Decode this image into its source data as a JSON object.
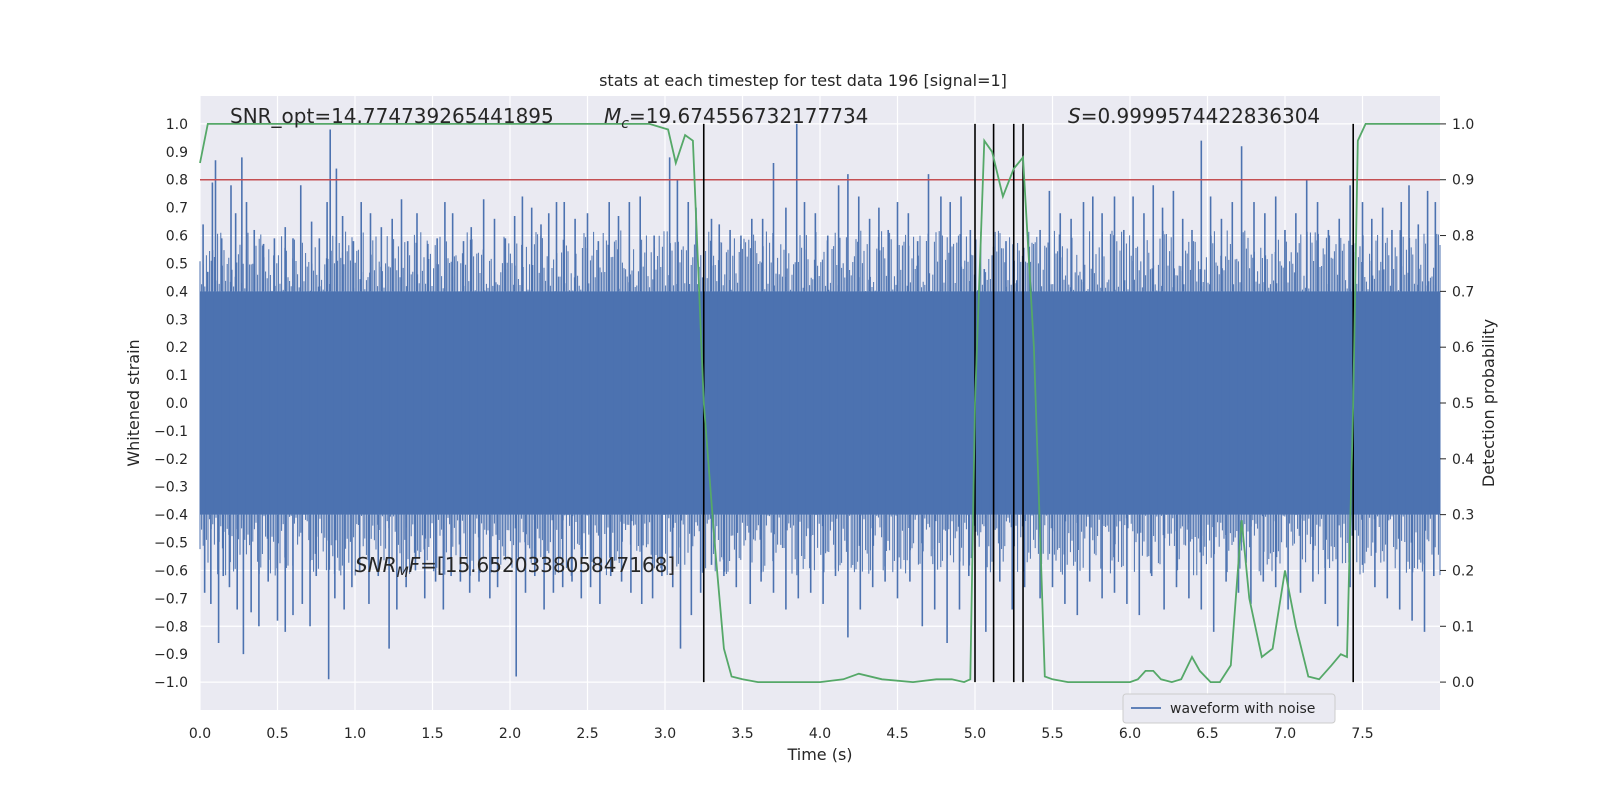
{
  "chart_data": {
    "type": "line",
    "title": "stats at each timestep for test data 196 [signal=1]",
    "xlabel": "Time (s)",
    "ylabel": "Whitened strain",
    "ylabel_right": "Detection probability",
    "xlim": [
      0.0,
      8.0
    ],
    "ylim": [
      -1.1,
      1.1
    ],
    "ylim_right": [
      -0.05,
      1.05
    ],
    "x_ticks": [
      "0.0",
      "0.5",
      "1.0",
      "1.5",
      "2.0",
      "2.5",
      "3.0",
      "3.5",
      "4.0",
      "4.5",
      "5.0",
      "5.5",
      "6.0",
      "6.5",
      "7.0",
      "7.5"
    ],
    "y_ticks": [
      "1.0",
      "0.9",
      "0.8",
      "0.7",
      "0.6",
      "0.5",
      "0.4",
      "0.3",
      "0.2",
      "0.1",
      "0.0",
      "-0.1",
      "-0.2",
      "-0.3",
      "-0.4",
      "-0.5",
      "-0.6",
      "-0.7",
      "-0.8",
      "-0.9",
      "-1.0"
    ],
    "y_ticks_right": [
      "1.0",
      "0.9",
      "0.8",
      "0.7",
      "0.6",
      "0.5",
      "0.4",
      "0.3",
      "0.2",
      "0.1",
      "0.0"
    ],
    "grid": true,
    "legend": {
      "placement": "lower-right",
      "entries": [
        "waveform with noise"
      ]
    },
    "annotations": {
      "snr_opt": "SNR_opt=14.774739265441895",
      "mc_prefix": "M",
      "mc_sub": "c",
      "mc_value": "=19.674556732177734",
      "s_prefix": "S",
      "s_value": "=0.9999574422836304",
      "snrmf_prefix": "SNR",
      "snrmf_sub": "M",
      "snrmf_f": "F",
      "snrmf_value": "=[15.652033805847168]"
    },
    "threshold": 0.9,
    "detection_times": [
      3.25,
      5.0,
      5.12,
      5.25,
      5.31,
      7.44
    ],
    "series": [
      {
        "name": "waveform with noise",
        "color": "#4c72b0",
        "envelope_upper": 0.4,
        "envelope_lower": -0.4,
        "peaks": [
          [
            0.02,
            0.64
          ],
          [
            0.05,
            0.47
          ],
          [
            0.08,
            0.79
          ],
          [
            0.1,
            0.87
          ],
          [
            0.14,
            0.59
          ],
          [
            0.2,
            0.78
          ],
          [
            0.23,
            0.68
          ],
          [
            0.27,
            0.88
          ],
          [
            0.3,
            0.72
          ],
          [
            0.35,
            0.62
          ],
          [
            0.41,
            0.57
          ],
          [
            0.48,
            0.59
          ],
          [
            0.55,
            0.63
          ],
          [
            0.6,
            0.59
          ],
          [
            0.65,
            0.78
          ],
          [
            0.72,
            0.65
          ],
          [
            0.77,
            0.59
          ],
          [
            0.82,
            0.72
          ],
          [
            0.84,
            0.98
          ],
          [
            0.88,
            0.84
          ],
          [
            0.92,
            0.67
          ],
          [
            0.99,
            0.58
          ],
          [
            1.04,
            0.72
          ],
          [
            1.1,
            0.68
          ],
          [
            1.17,
            0.63
          ],
          [
            1.24,
            0.66
          ],
          [
            1.3,
            0.73
          ],
          [
            1.34,
            0.58
          ],
          [
            1.4,
            0.68
          ],
          [
            1.47,
            0.57
          ],
          [
            1.53,
            0.59
          ],
          [
            1.58,
            0.72
          ],
          [
            1.63,
            0.68
          ],
          [
            1.7,
            0.58
          ],
          [
            1.75,
            0.63
          ],
          [
            1.83,
            0.73
          ],
          [
            1.9,
            0.66
          ],
          [
            1.97,
            0.59
          ],
          [
            2.03,
            0.67
          ],
          [
            2.08,
            0.74
          ],
          [
            2.14,
            0.7
          ],
          [
            2.2,
            0.64
          ],
          [
            2.25,
            0.68
          ],
          [
            2.3,
            0.72
          ],
          [
            2.35,
            0.72
          ],
          [
            2.42,
            0.66
          ],
          [
            2.5,
            0.68
          ],
          [
            2.57,
            0.58
          ],
          [
            2.64,
            0.72
          ],
          [
            2.7,
            0.67
          ],
          [
            2.77,
            0.72
          ],
          [
            2.84,
            0.74
          ],
          [
            2.93,
            0.6
          ],
          [
            3.03,
            0.88
          ],
          [
            3.08,
            0.8
          ],
          [
            3.15,
            0.72
          ],
          [
            3.2,
            0.7
          ],
          [
            3.3,
            0.66
          ],
          [
            3.35,
            0.64
          ],
          [
            3.42,
            0.62
          ],
          [
            3.49,
            0.6
          ],
          [
            3.56,
            0.66
          ],
          [
            3.63,
            0.66
          ],
          [
            3.7,
            0.86
          ],
          [
            3.78,
            0.7
          ],
          [
            3.85,
            1.0
          ],
          [
            3.9,
            0.72
          ],
          [
            3.97,
            0.68
          ],
          [
            4.05,
            0.6
          ],
          [
            4.12,
            0.78
          ],
          [
            4.18,
            0.82
          ],
          [
            4.25,
            0.74
          ],
          [
            4.32,
            0.66
          ],
          [
            4.38,
            0.7
          ],
          [
            4.44,
            0.62
          ],
          [
            4.5,
            0.72
          ],
          [
            4.57,
            0.68
          ],
          [
            4.63,
            0.58
          ],
          [
            4.7,
            0.82
          ],
          [
            4.78,
            0.74
          ],
          [
            4.84,
            0.72
          ],
          [
            4.91,
            0.74
          ],
          [
            4.97,
            0.62
          ],
          [
            5.06,
            0.48
          ],
          [
            5.12,
            0.56
          ],
          [
            5.2,
            0.58
          ],
          [
            5.27,
            0.44
          ],
          [
            5.35,
            0.56
          ],
          [
            5.42,
            0.62
          ],
          [
            5.48,
            0.76
          ],
          [
            5.55,
            0.68
          ],
          [
            5.62,
            0.66
          ],
          [
            5.7,
            0.72
          ],
          [
            5.76,
            0.74
          ],
          [
            5.82,
            0.68
          ],
          [
            5.9,
            0.74
          ],
          [
            5.96,
            0.62
          ],
          [
            6.02,
            0.74
          ],
          [
            6.09,
            0.68
          ],
          [
            6.15,
            0.78
          ],
          [
            6.21,
            0.7
          ],
          [
            6.28,
            0.76
          ],
          [
            6.34,
            0.66
          ],
          [
            6.4,
            0.62
          ],
          [
            6.46,
            0.94
          ],
          [
            6.52,
            0.74
          ],
          [
            6.59,
            0.66
          ],
          [
            6.66,
            0.72
          ],
          [
            6.72,
            0.92
          ],
          [
            6.8,
            0.72
          ],
          [
            6.87,
            0.68
          ],
          [
            6.94,
            0.74
          ],
          [
            7.0,
            0.62
          ],
          [
            7.07,
            0.68
          ],
          [
            7.14,
            0.8
          ],
          [
            7.21,
            0.72
          ],
          [
            7.28,
            0.62
          ],
          [
            7.35,
            0.66
          ],
          [
            7.42,
            0.78
          ],
          [
            7.5,
            0.72
          ],
          [
            7.56,
            0.66
          ],
          [
            7.63,
            0.7
          ],
          [
            7.69,
            0.62
          ],
          [
            7.75,
            0.72
          ],
          [
            7.8,
            0.78
          ],
          [
            7.86,
            0.64
          ],
          [
            7.92,
            0.76
          ],
          [
            7.97,
            0.72
          ],
          [
            0.03,
            -0.68
          ],
          [
            0.07,
            -0.72
          ],
          [
            0.12,
            -0.86
          ],
          [
            0.15,
            -0.62
          ],
          [
            0.19,
            -0.66
          ],
          [
            0.24,
            -0.74
          ],
          [
            0.28,
            -0.9
          ],
          [
            0.33,
            -0.75
          ],
          [
            0.38,
            -0.8
          ],
          [
            0.44,
            -0.64
          ],
          [
            0.5,
            -0.78
          ],
          [
            0.55,
            -0.82
          ],
          [
            0.6,
            -0.76
          ],
          [
            0.66,
            -0.72
          ],
          [
            0.71,
            -0.8
          ],
          [
            0.75,
            -0.62
          ],
          [
            0.83,
            -0.99
          ],
          [
            0.87,
            -0.7
          ],
          [
            0.93,
            -0.74
          ],
          [
            0.98,
            -0.66
          ],
          [
            1.03,
            -0.6
          ],
          [
            1.09,
            -0.72
          ],
          [
            1.15,
            -0.62
          ],
          [
            1.22,
            -0.88
          ],
          [
            1.27,
            -0.74
          ],
          [
            1.33,
            -0.66
          ],
          [
            1.39,
            -0.6
          ],
          [
            1.45,
            -0.7
          ],
          [
            1.52,
            -0.64
          ],
          [
            1.57,
            -0.74
          ],
          [
            1.62,
            -0.62
          ],
          [
            1.68,
            -0.64
          ],
          [
            1.74,
            -0.68
          ],
          [
            1.8,
            -0.64
          ],
          [
            1.87,
            -0.7
          ],
          [
            1.92,
            -0.66
          ],
          [
            2.04,
            -0.98
          ],
          [
            2.1,
            -0.68
          ],
          [
            2.16,
            -0.62
          ],
          [
            2.22,
            -0.74
          ],
          [
            2.28,
            -0.68
          ],
          [
            2.34,
            -0.66
          ],
          [
            2.4,
            -0.64
          ],
          [
            2.46,
            -0.7
          ],
          [
            2.52,
            -0.66
          ],
          [
            2.58,
            -0.72
          ],
          [
            2.65,
            -0.62
          ],
          [
            2.72,
            -0.64
          ],
          [
            2.78,
            -0.68
          ],
          [
            2.85,
            -0.72
          ],
          [
            2.92,
            -0.7
          ],
          [
            2.98,
            -0.62
          ],
          [
            3.05,
            -0.66
          ],
          [
            3.1,
            -0.88
          ],
          [
            3.17,
            -0.76
          ],
          [
            3.23,
            -0.68
          ],
          [
            3.3,
            -0.58
          ],
          [
            3.38,
            -0.62
          ],
          [
            3.46,
            -0.66
          ],
          [
            3.55,
            -0.72
          ],
          [
            3.62,
            -0.64
          ],
          [
            3.7,
            -0.68
          ],
          [
            3.78,
            -0.74
          ],
          [
            3.86,
            -0.7
          ],
          [
            3.94,
            -0.68
          ],
          [
            4.02,
            -0.72
          ],
          [
            4.1,
            -0.62
          ],
          [
            4.18,
            -0.84
          ],
          [
            4.26,
            -0.74
          ],
          [
            4.34,
            -0.66
          ],
          [
            4.42,
            -0.64
          ],
          [
            4.5,
            -0.7
          ],
          [
            4.58,
            -0.64
          ],
          [
            4.66,
            -0.8
          ],
          [
            4.74,
            -0.74
          ],
          [
            4.82,
            -0.86
          ],
          [
            4.9,
            -0.74
          ],
          [
            4.96,
            -0.62
          ],
          [
            5.07,
            -0.82
          ],
          [
            5.16,
            -0.64
          ],
          [
            5.24,
            -0.74
          ],
          [
            5.32,
            -0.66
          ],
          [
            5.42,
            -0.7
          ],
          [
            5.5,
            -0.66
          ],
          [
            5.58,
            -0.72
          ],
          [
            5.66,
            -0.76
          ],
          [
            5.74,
            -0.64
          ],
          [
            5.82,
            -0.7
          ],
          [
            5.9,
            -0.68
          ],
          [
            5.98,
            -0.72
          ],
          [
            6.06,
            -0.76
          ],
          [
            6.14,
            -0.62
          ],
          [
            6.22,
            -0.74
          ],
          [
            6.3,
            -0.66
          ],
          [
            6.38,
            -0.7
          ],
          [
            6.46,
            -0.74
          ],
          [
            6.54,
            -0.82
          ],
          [
            6.62,
            -0.64
          ],
          [
            6.7,
            -0.68
          ],
          [
            6.78,
            -0.72
          ],
          [
            6.86,
            -0.64
          ],
          [
            6.94,
            -0.66
          ],
          [
            7.02,
            -0.74
          ],
          [
            7.1,
            -0.68
          ],
          [
            7.18,
            -0.64
          ],
          [
            7.26,
            -0.72
          ],
          [
            7.34,
            -0.8
          ],
          [
            7.42,
            -0.66
          ],
          [
            7.5,
            -0.58
          ],
          [
            7.58,
            -0.66
          ],
          [
            7.66,
            -0.7
          ],
          [
            7.74,
            -0.74
          ],
          [
            7.82,
            -0.78
          ],
          [
            7.9,
            -0.82
          ],
          [
            7.96,
            -0.62
          ]
        ]
      },
      {
        "name": "detection probability",
        "color": "#55a868",
        "axis": "right",
        "x": [
          0.0,
          0.05,
          0.5,
          1.0,
          1.5,
          2.0,
          2.5,
          2.9,
          3.02,
          3.07,
          3.13,
          3.18,
          3.25,
          3.32,
          3.38,
          3.43,
          3.5,
          3.6,
          3.8,
          4.0,
          4.15,
          4.25,
          4.4,
          4.6,
          4.75,
          4.85,
          4.93,
          4.97,
          5.0,
          5.06,
          5.11,
          5.18,
          5.25,
          5.31,
          5.38,
          5.45,
          5.5,
          5.6,
          6.0,
          6.05,
          6.1,
          6.15,
          6.2,
          6.27,
          6.33,
          6.4,
          6.45,
          6.52,
          6.58,
          6.65,
          6.72,
          6.77,
          6.85,
          6.92,
          7.0,
          7.07,
          7.15,
          7.22,
          7.3,
          7.36,
          7.4,
          7.44,
          7.47,
          7.52,
          7.6,
          8.0
        ],
        "values": [
          0.93,
          1.0,
          1.0,
          1.0,
          1.0,
          1.0,
          1.0,
          1.0,
          0.99,
          0.93,
          0.98,
          0.97,
          0.5,
          0.25,
          0.06,
          0.01,
          0.005,
          0.0,
          0.0,
          0.0,
          0.005,
          0.015,
          0.005,
          0.0,
          0.005,
          0.005,
          0.0,
          0.005,
          0.5,
          0.97,
          0.95,
          0.87,
          0.92,
          0.94,
          0.6,
          0.01,
          0.005,
          0.0,
          0.0,
          0.005,
          0.02,
          0.02,
          0.005,
          0.0,
          0.005,
          0.045,
          0.02,
          0.0,
          0.0,
          0.03,
          0.29,
          0.15,
          0.045,
          0.06,
          0.2,
          0.1,
          0.01,
          0.005,
          0.03,
          0.05,
          0.045,
          0.5,
          0.97,
          1.0,
          1.0,
          1.0
        ]
      }
    ]
  }
}
